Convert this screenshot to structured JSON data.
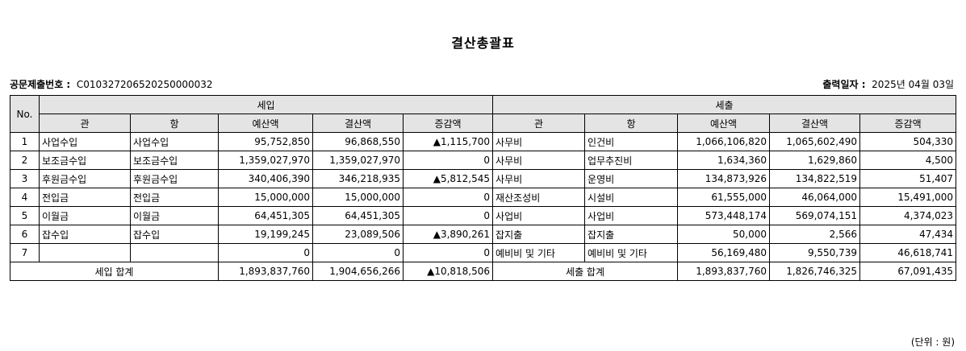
{
  "title": "결산총괄표",
  "doc_no_label": "공문제출번호 :",
  "doc_no_value": "C010327206520250000032",
  "print_date_label": "출력일자 :",
  "print_date_value": "2025년 04월 03일",
  "headers": {
    "no": "No.",
    "income": "세입",
    "expense": "세출",
    "cols": [
      "관",
      "항",
      "예산액",
      "결산액",
      "증감액",
      "관",
      "항",
      "예산액",
      "결산액",
      "증감액"
    ]
  },
  "rows": [
    [
      "1",
      "사업수입",
      "사업수입",
      "95,752,850",
      "96,868,550",
      "▲1,115,700",
      "사무비",
      "인건비",
      "1,066,106,820",
      "1,065,602,490",
      "504,330"
    ],
    [
      "2",
      "보조금수입",
      "보조금수입",
      "1,359,027,970",
      "1,359,027,970",
      "0",
      "사무비",
      "업무추진비",
      "1,634,360",
      "1,629,860",
      "4,500"
    ],
    [
      "3",
      "후원금수입",
      "후원금수입",
      "340,406,390",
      "346,218,935",
      "▲5,812,545",
      "사무비",
      "운영비",
      "134,873,926",
      "134,822,519",
      "51,407"
    ],
    [
      "4",
      "전입금",
      "전입금",
      "15,000,000",
      "15,000,000",
      "0",
      "재산조성비",
      "시설비",
      "61,555,000",
      "46,064,000",
      "15,491,000"
    ],
    [
      "5",
      "이월금",
      "이월금",
      "64,451,305",
      "64,451,305",
      "0",
      "사업비",
      "사업비",
      "573,448,174",
      "569,074,151",
      "4,374,023"
    ],
    [
      "6",
      "잡수입",
      "잡수입",
      "19,199,245",
      "23,089,506",
      "▲3,890,261",
      "잡지출",
      "잡지출",
      "50,000",
      "2,566",
      "47,434"
    ],
    [
      "7",
      "",
      "",
      "0",
      "0",
      "0",
      "예비비 및 기타",
      "예비비 및 기타",
      "56,169,480",
      "9,550,739",
      "46,618,741"
    ]
  ],
  "totals": {
    "income_label": "세입 합계",
    "income_budget": "1,893,837,760",
    "income_settled": "1,904,656,266",
    "income_diff": "▲10,818,506",
    "expense_label": "세출 합계",
    "expense_budget": "1,893,837,760",
    "expense_settled": "1,826,746,325",
    "expense_diff": "67,091,435"
  },
  "unit_note": "(단위 : 원)"
}
